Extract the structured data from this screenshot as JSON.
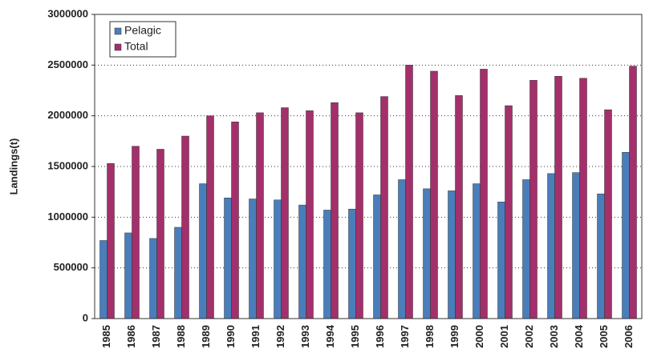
{
  "chart_data": {
    "type": "bar",
    "y_label": "Landings(t)",
    "categories": [
      "1985",
      "1986",
      "1987",
      "1988",
      "1989",
      "1990",
      "1991",
      "1992",
      "1993",
      "1994",
      "1995",
      "1996",
      "1997",
      "1998",
      "1999",
      "2000",
      "2001",
      "2002",
      "2003",
      "2004",
      "2005",
      "2006"
    ],
    "series": [
      {
        "name": "Pelagic",
        "color": "#4a7ebb",
        "values": [
          770000,
          845000,
          790000,
          900000,
          1330000,
          1190000,
          1180000,
          1170000,
          1120000,
          1070000,
          1080000,
          1220000,
          1370000,
          1280000,
          1260000,
          1330000,
          1150000,
          1370000,
          1430000,
          1440000,
          1230000,
          1640000
        ]
      },
      {
        "name": "Total",
        "color": "#a3306b",
        "values": [
          1530000,
          1700000,
          1670000,
          1800000,
          2000000,
          1940000,
          2030000,
          2080000,
          2050000,
          2130000,
          2030000,
          2190000,
          2500000,
          2440000,
          2200000,
          2460000,
          2100000,
          2350000,
          2390000,
          2370000,
          2060000,
          2490000
        ]
      }
    ],
    "ylim": [
      0,
      3000000
    ],
    "yticks": [
      0,
      500000,
      1000000,
      1500000,
      2000000,
      2500000,
      3000000
    ],
    "grid": true
  }
}
